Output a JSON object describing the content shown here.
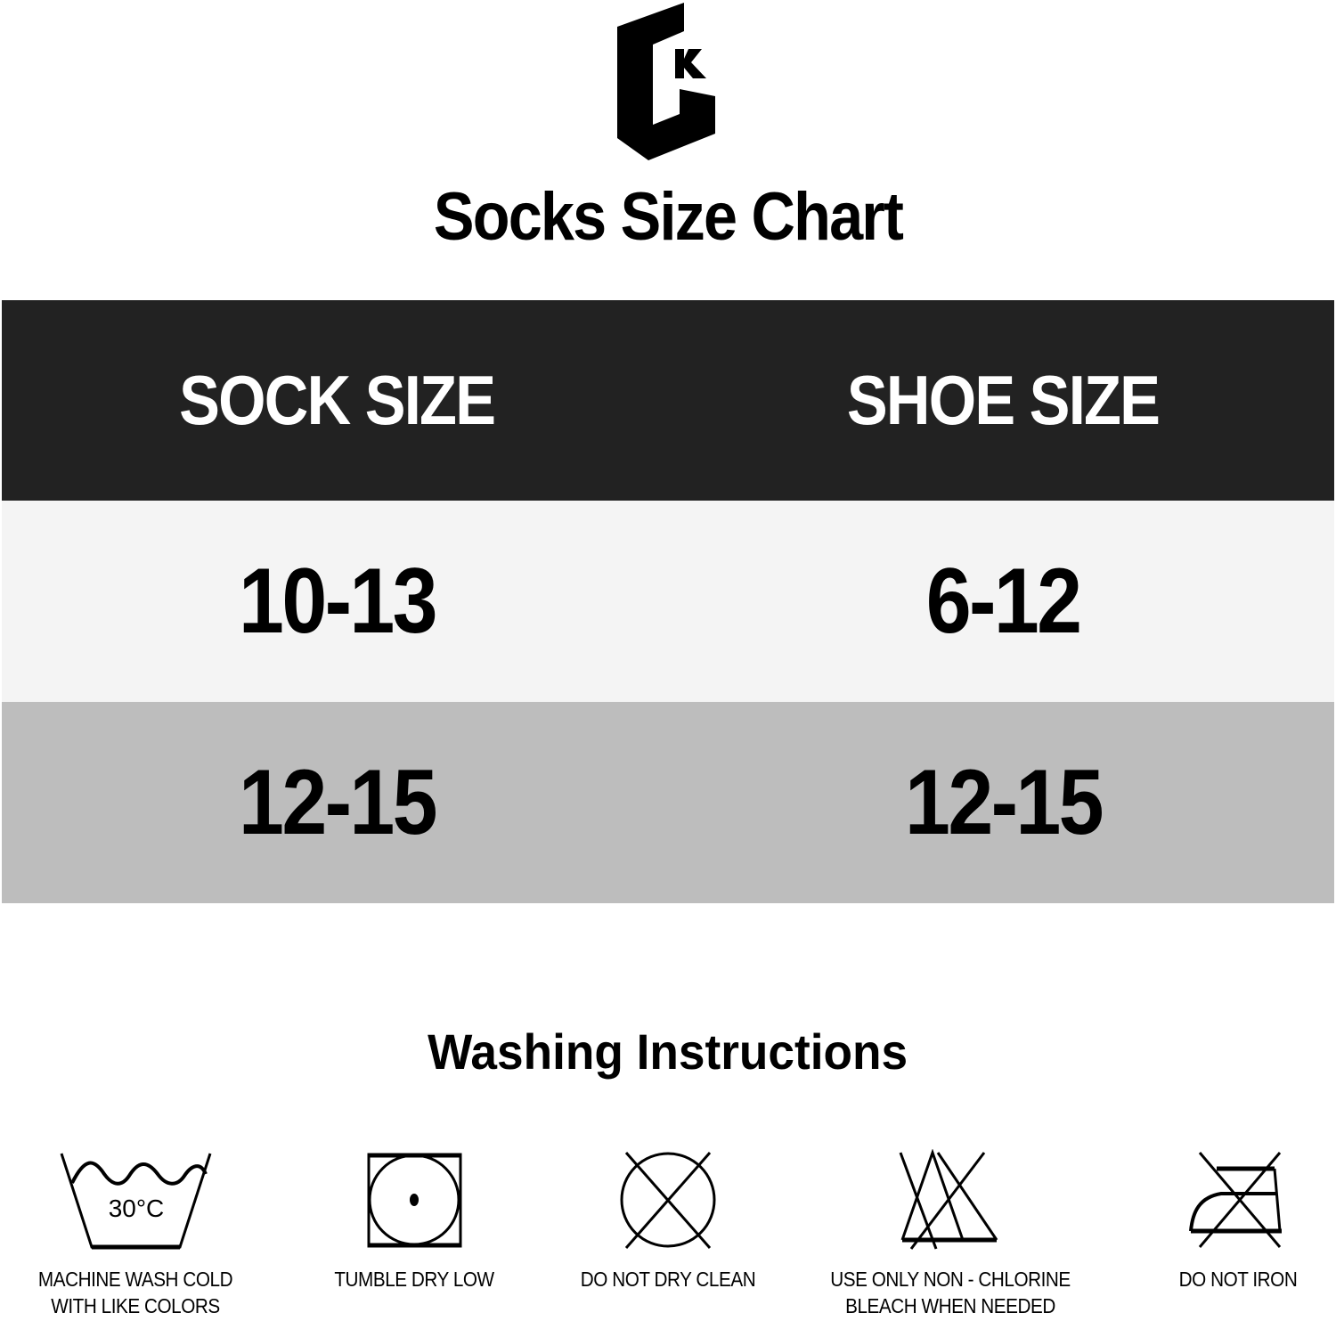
{
  "logo": {
    "text": "GK"
  },
  "title": "Socks Size Chart",
  "table": {
    "headers": [
      "SOCK SIZE",
      "SHOE SIZE"
    ],
    "rows": [
      [
        "10-13",
        "6-12"
      ],
      [
        "12-15",
        "12-15"
      ]
    ],
    "colors": {
      "header": "#222222",
      "row1": "#f4f4f4",
      "row2": "#bdbdbd"
    }
  },
  "washing": {
    "title": "Washing Instructions",
    "items": [
      {
        "icon": "machine-wash-30-icon",
        "temp": "30°C",
        "lines": [
          "MACHINE WASH COLD",
          "WITH LIKE COLORS"
        ]
      },
      {
        "icon": "tumble-dry-low-icon",
        "lines": [
          "TUMBLE DRY LOW"
        ]
      },
      {
        "icon": "do-not-dry-clean-icon",
        "lines": [
          "DO NOT DRY CLEAN"
        ]
      },
      {
        "icon": "non-chlorine-bleach-icon",
        "lines": [
          "USE ONLY NON - CHLORINE",
          "BLEACH WHEN NEEDED"
        ]
      },
      {
        "icon": "do-not-iron-icon",
        "lines": [
          "DO NOT IRON"
        ]
      }
    ]
  }
}
